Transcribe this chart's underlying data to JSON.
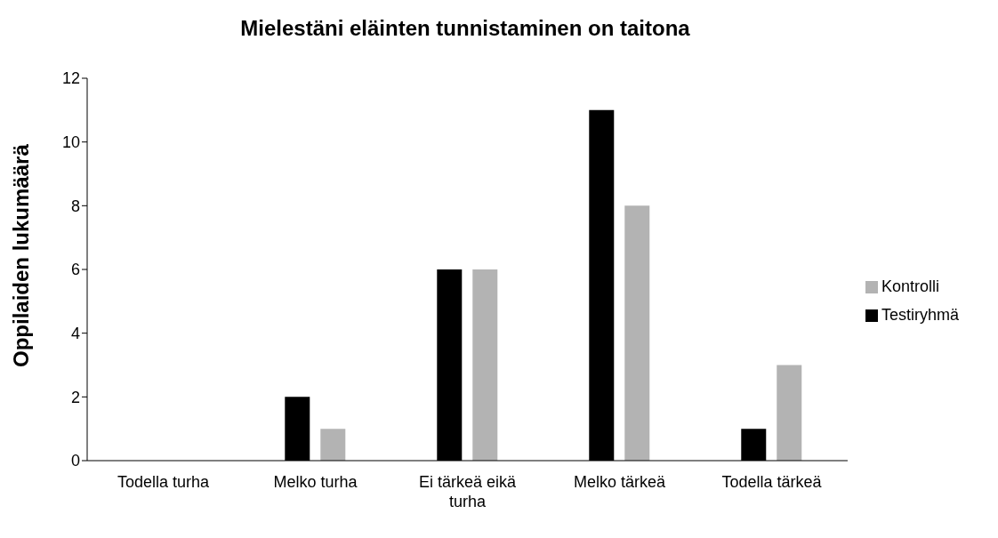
{
  "chart_data": {
    "type": "bar",
    "title": "Mielestäni eläinten tunnistaminen on taitona",
    "ylabel": "Oppilaiden lukumäärä",
    "categories": [
      "Todella turha",
      "Melko turha",
      "Ei tärkeä eikä turha",
      "Melko tärkeä",
      "Todella tärkeä"
    ],
    "series": [
      {
        "name": "Testiryhmä",
        "color": "#000000",
        "values": [
          0,
          2,
          6,
          11,
          1
        ]
      },
      {
        "name": "Kontrolli",
        "color": "#b3b3b3",
        "values": [
          0,
          1,
          6,
          8,
          3
        ]
      }
    ],
    "ylim": [
      0,
      12
    ],
    "yticks": [
      0,
      2,
      4,
      6,
      8,
      10,
      12
    ],
    "grid": false,
    "legend": "right"
  }
}
